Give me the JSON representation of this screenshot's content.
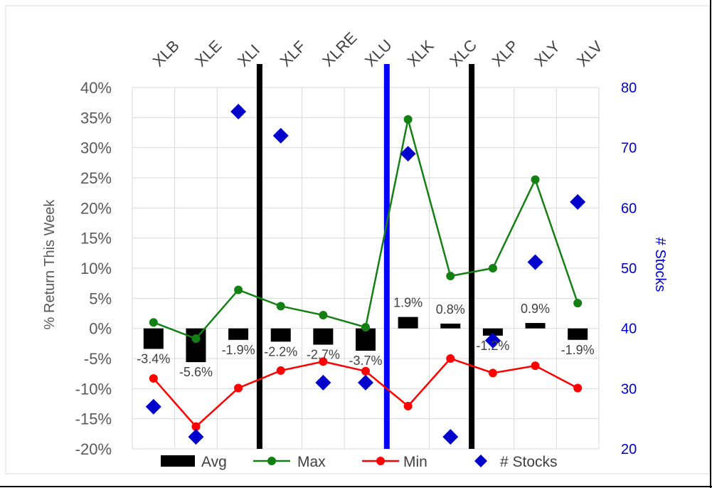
{
  "chart_data": {
    "type": "bar",
    "categories": [
      "XLB",
      "XLE",
      "XLI",
      "XLF",
      "XLRE",
      "XLU",
      "XLK",
      "XLC",
      "XLP",
      "XLY",
      "XLV"
    ],
    "series": [
      {
        "name": "Avg",
        "type": "bar",
        "axis": "left",
        "color": "#000000",
        "values": [
          -3.4,
          -5.6,
          -1.9,
          -2.2,
          -2.7,
          -3.7,
          1.9,
          0.8,
          -1.2,
          0.9,
          -1.9
        ],
        "labels": [
          "-3.4%",
          "-5.6%",
          "-1.9%",
          "-2.2%",
          "-2.7%",
          "-3.7%",
          "1.9%",
          "0.8%",
          "-1.2%",
          "0.9%",
          "-1.9%"
        ]
      },
      {
        "name": "Max",
        "type": "line",
        "axis": "left",
        "color": "#148014",
        "values": [
          1.0,
          -1.7,
          6.4,
          3.7,
          2.2,
          0.2,
          34.7,
          8.7,
          10.0,
          24.7,
          4.2
        ]
      },
      {
        "name": "Min",
        "type": "line",
        "axis": "left",
        "color": "#ff0000",
        "values": [
          -8.3,
          -16.3,
          -9.9,
          -7.0,
          -5.5,
          -7.1,
          -12.9,
          -5.0,
          -7.4,
          -6.2,
          -9.9
        ]
      },
      {
        "name": "# Stocks",
        "type": "scatter",
        "axis": "right",
        "color": "#0000cc",
        "values": [
          27,
          22,
          76,
          72,
          31,
          31,
          69,
          22,
          38,
          51,
          61
        ]
      }
    ],
    "ylabel": "% Return This Week",
    "y2label": "# Stocks",
    "ylim": [
      -20,
      40
    ],
    "y2lim": [
      20,
      80
    ],
    "yticks": [
      "40%",
      "35%",
      "30%",
      "25%",
      "20%",
      "15%",
      "10%",
      "5%",
      "0%",
      "-5%",
      "-10%",
      "-15%",
      "-20%"
    ],
    "y2ticks": [
      "80",
      "70",
      "60",
      "50",
      "40",
      "30",
      "20"
    ],
    "separators": [
      {
        "after_category": "XLI",
        "color": "#000000"
      },
      {
        "after_category": "XLU",
        "color": "#0000ff"
      },
      {
        "after_category": "XLC",
        "color": "#000000"
      }
    ],
    "grid": true,
    "legend_position": "bottom"
  }
}
